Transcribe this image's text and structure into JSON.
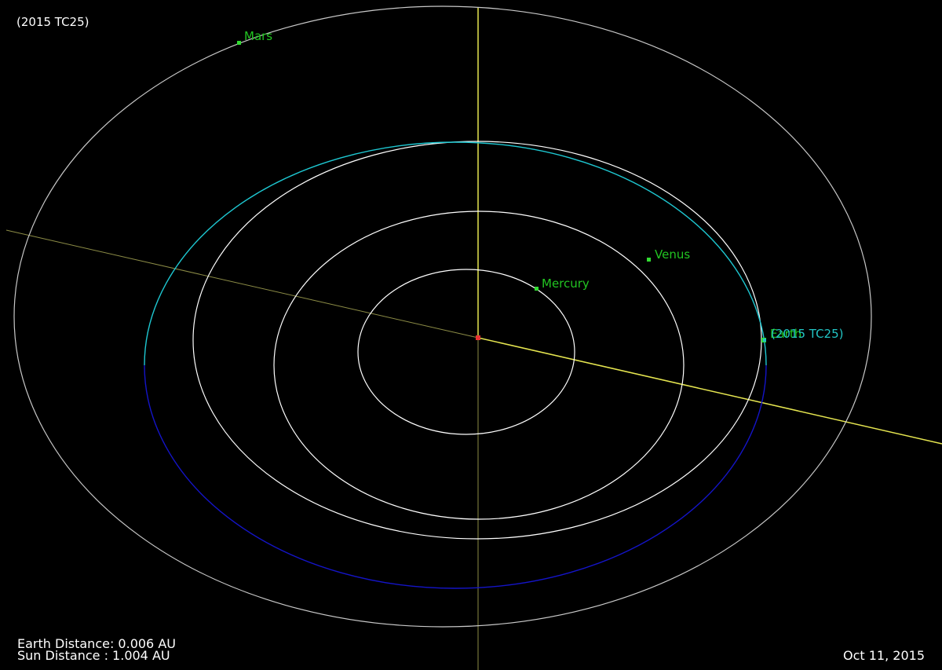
{
  "title": "(2015 TC25)",
  "bodies": {
    "mercury": "Mercury",
    "venus": "Venus",
    "earth": "Earth",
    "mars": "Mars",
    "asteroid": "(2015 TC25)"
  },
  "readouts": {
    "earth_distance": "Earth Distance: 0.006 AU",
    "sun_distance": "Sun Distance  : 1.004 AU"
  },
  "date": "Oct 11, 2015",
  "colors": {
    "background": "#000000",
    "planet_orbit": "#ffffff",
    "outer_orbit": "#c8c8c8",
    "asteroid_orbit_above": "#1ec8d2",
    "asteroid_orbit_below": "#1414c8",
    "axis_line": "#e6e650",
    "planet_marker": "#32dc32",
    "sun": "#e63232",
    "planet_label": "#22c522",
    "asteroid_label": "#22c5c5"
  }
}
